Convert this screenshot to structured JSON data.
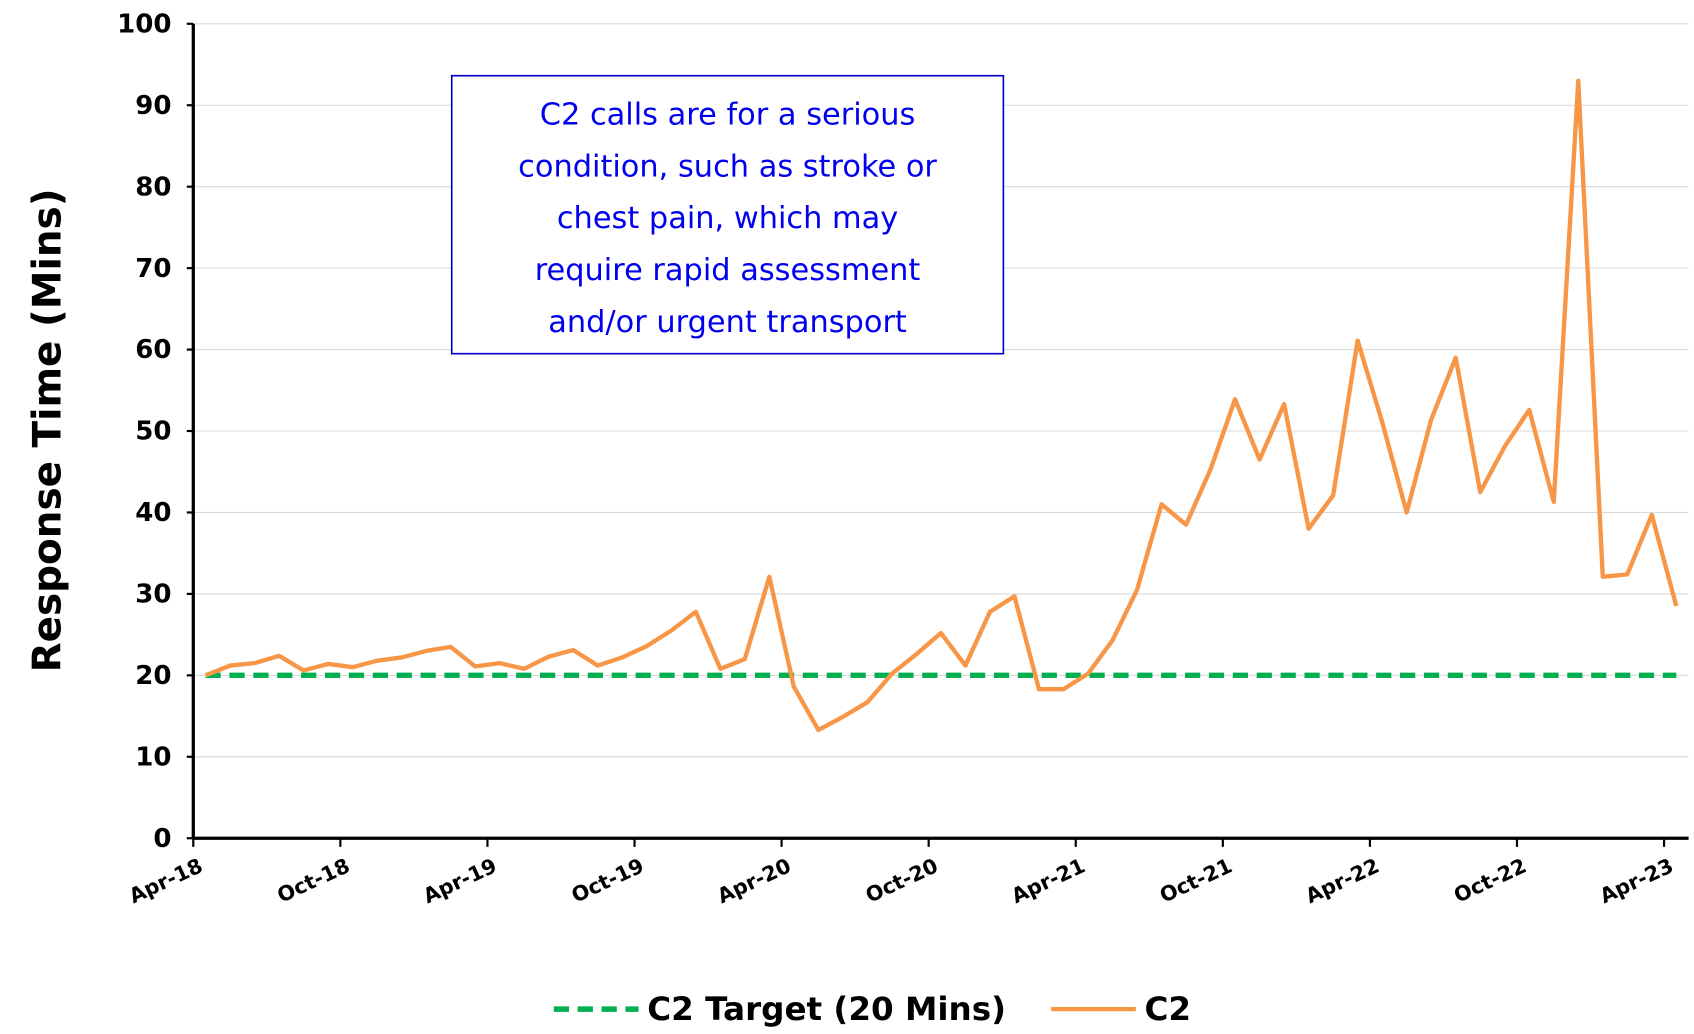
{
  "chart_data": {
    "type": "line",
    "ylabel": "Response Time (Mins)",
    "annotation": [
      "C2 calls are for a serious",
      "condition, such as stroke or",
      "chest pain, which may",
      "require rapid assessment",
      "and/or urgent transport"
    ],
    "categories": [
      "Apr-18",
      null,
      null,
      null,
      null,
      null,
      "Oct-18",
      null,
      null,
      null,
      null,
      null,
      "Apr-19",
      null,
      null,
      null,
      null,
      null,
      "Oct-19",
      null,
      null,
      null,
      null,
      null,
      "Apr-20",
      null,
      null,
      null,
      null,
      null,
      "Oct-20",
      null,
      null,
      null,
      null,
      null,
      "Apr-21",
      null,
      null,
      null,
      null,
      null,
      "Oct-21",
      null,
      null,
      null,
      null,
      null,
      "Apr-22",
      null,
      null,
      null,
      null,
      null,
      "Oct-22",
      null,
      null,
      null,
      null,
      null,
      "Apr-23"
    ],
    "series": [
      {
        "name": "C2 Target (20 Mins)",
        "color": "#00b050",
        "dashed": true,
        "values": [
          20,
          20,
          20,
          20,
          20,
          20,
          20,
          20,
          20,
          20,
          20,
          20,
          20,
          20,
          20,
          20,
          20,
          20,
          20,
          20,
          20,
          20,
          20,
          20,
          20,
          20,
          20,
          20,
          20,
          20,
          20,
          20,
          20,
          20,
          20,
          20,
          20,
          20,
          20,
          20,
          20,
          20,
          20,
          20,
          20,
          20,
          20,
          20,
          20,
          20,
          20,
          20,
          20,
          20,
          20,
          20,
          20,
          20,
          20,
          20,
          20
        ]
      },
      {
        "name": "C2",
        "color": "#f79646",
        "dashed": false,
        "values": [
          20,
          21.2,
          21.5,
          22.4,
          20.6,
          21.4,
          21,
          21.8,
          22.2,
          23,
          23.5,
          21.1,
          21.5,
          20.8,
          22.3,
          23.1,
          21.2,
          22.2,
          23.6,
          25.5,
          27.8,
          20.8,
          22,
          32.1,
          18.6,
          13.3,
          14.9,
          16.7,
          20.2,
          22.6,
          25.2,
          21.2,
          27.8,
          29.7,
          18.3,
          18.3,
          20.2,
          24.3,
          30.5,
          41,
          38.5,
          45.3,
          53.9,
          46.5,
          53.3,
          38,
          42.1,
          61.1,
          51.1,
          40,
          51.4,
          59,
          42.5,
          48.1,
          52.6,
          41.3,
          93,
          32.1,
          32.4,
          39.7,
          28.5
        ]
      }
    ],
    "ylim": [
      0,
      100
    ],
    "yticks": [
      0,
      10,
      20,
      30,
      40,
      50,
      60,
      70,
      80,
      90,
      100
    ],
    "grid": true,
    "legend": "bottom"
  }
}
